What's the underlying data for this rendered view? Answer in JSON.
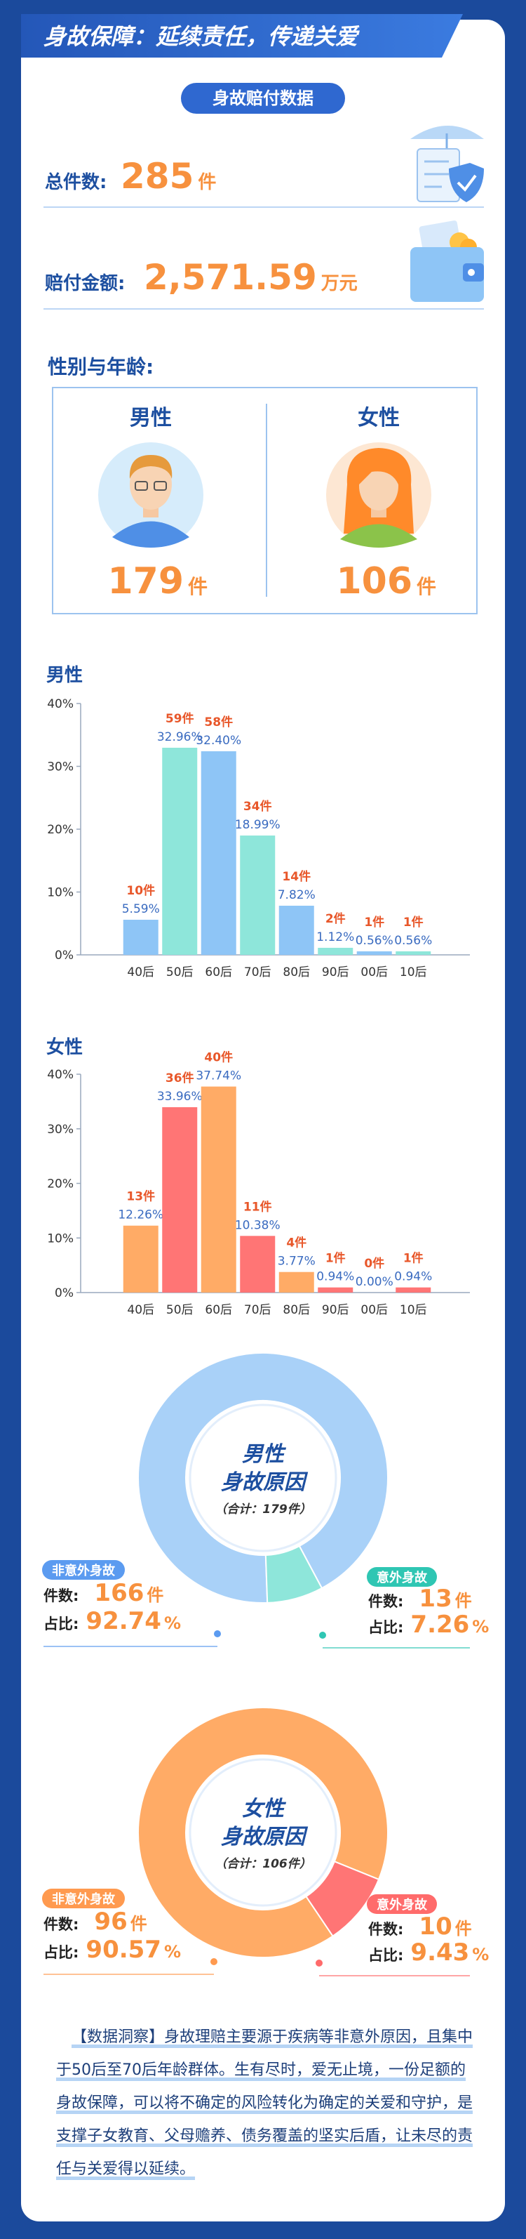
{
  "header": {
    "title": "身故保障：延续责任，传递关爱"
  },
  "section_title": "身故赔付数据",
  "stats": {
    "total_label": "总件数:",
    "total": 285,
    "total_unit": "件",
    "amount_label": "赔付金额:",
    "amount": "2,571.59",
    "amount_unit": "万元"
  },
  "gender": {
    "title": "性别与年龄:",
    "male": {
      "label": "男性",
      "count": 179,
      "unit": "件"
    },
    "female": {
      "label": "女性",
      "count": 106,
      "unit": "件"
    }
  },
  "chart_data": [
    {
      "type": "bar",
      "title": "男性",
      "categories": [
        "40后",
        "50后",
        "60后",
        "70后",
        "80后",
        "90后",
        "00后",
        "10后"
      ],
      "values": [
        5.59,
        32.96,
        32.4,
        18.99,
        7.82,
        1.12,
        0.56,
        0.56
      ],
      "value_labels": [
        "5.59%",
        "32.96%",
        "32.40%",
        "18.99%",
        "7.82%",
        "1.12%",
        "0.56%",
        "0.56%"
      ],
      "count_labels": [
        "10件",
        "59件",
        "58件",
        "34件",
        "14件",
        "2件",
        "1件",
        "1件"
      ],
      "colors": [
        "#8ec5f6",
        "#8ee6da"
      ],
      "ylim": [
        0,
        40
      ],
      "yticks": [
        {
          "value": 0,
          "label": "0%"
        },
        {
          "value": 10,
          "label": "10%"
        },
        {
          "value": 20,
          "label": "20%"
        },
        {
          "value": 30,
          "label": "30%"
        },
        {
          "value": 40,
          "label": "40%"
        }
      ]
    },
    {
      "type": "bar",
      "title": "女性",
      "categories": [
        "40后",
        "50后",
        "60后",
        "70后",
        "80后",
        "90后",
        "00后",
        "10后"
      ],
      "values": [
        12.26,
        33.96,
        37.74,
        10.38,
        3.77,
        0.94,
        0,
        0.94
      ],
      "value_labels": [
        "12.26%",
        "33.96%",
        "37.74%",
        "10.38%",
        "3.77%",
        "0.94%",
        "0.00%",
        "0.94%"
      ],
      "count_labels": [
        "13件",
        "36件",
        "40件",
        "11件",
        "4件",
        "1件",
        "0件",
        "1件"
      ],
      "colors": [
        "#ffab66",
        "#ff7575"
      ],
      "ylim": [
        0,
        40
      ],
      "yticks": [
        {
          "value": 0,
          "label": "0%"
        },
        {
          "value": 10,
          "label": "10%"
        },
        {
          "value": 20,
          "label": "20%"
        },
        {
          "value": 30,
          "label": "30%"
        },
        {
          "value": 40,
          "label": "40%"
        }
      ]
    },
    {
      "type": "pie",
      "title": "男性",
      "subtitle": "身故原因",
      "total_label": "（合计：179件）",
      "categories": [
        "非意外身故",
        "意外身故"
      ],
      "values": [
        92.74,
        7.26
      ],
      "counts": [
        166,
        13
      ],
      "colors": [
        "#a9d1f8",
        "#8ee6da"
      ],
      "label_colors": [
        "#5b9bf0",
        "#2fc6b3"
      ],
      "count_label": "件数:",
      "share_label": "占比:",
      "count_unit": "件",
      "value_unit": "%"
    },
    {
      "type": "pie",
      "title": "女性",
      "subtitle": "身故原因",
      "total_label": "（合计：106件）",
      "categories": [
        "非意外身故",
        "意外身故"
      ],
      "values": [
        90.57,
        9.43
      ],
      "counts": [
        96,
        10
      ],
      "colors": [
        "#ffab66",
        "#ff7575"
      ],
      "label_colors": [
        "#ff9a4f",
        "#ff6b6b"
      ],
      "count_label": "件数:",
      "share_label": "占比:",
      "count_unit": "件",
      "value_unit": "%"
    }
  ],
  "insight": "【数据洞察】身故理赔主要源于疾病等非意外原因，且集中于50后至70后年龄群体。生有尽时，爱无止境，一份足额的身故保障，可以将不确定的风险转化为确定的关爱和守护，是支撑子女教育、父母赡养、债务覆盖的坚实后盾，让未尽的责任与关爱得以延续。"
}
